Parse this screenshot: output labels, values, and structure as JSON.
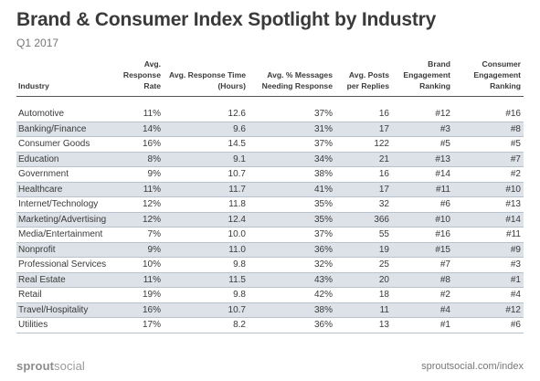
{
  "header": {
    "title": "Brand & Consumer Index Spotlight by Industry",
    "subtitle": "Q1 2017"
  },
  "chart_data": {
    "type": "table",
    "title": "Brand & Consumer Index Spotlight by Industry",
    "subtitle": "Q1 2017",
    "columns": [
      "Industry",
      "Avg. Response Rate",
      "Avg. Response Time (Hours)",
      "Avg. % Messages Needing Response",
      "Avg. Posts per Replies",
      "Brand Engagement Ranking",
      "Consumer Engagement Ranking"
    ],
    "rows": [
      [
        "Automotive",
        "11%",
        "12.6",
        "37%",
        "16",
        "#12",
        "#16"
      ],
      [
        "Banking/Finance",
        "14%",
        "9.6",
        "31%",
        "17",
        "#3",
        "#8"
      ],
      [
        "Consumer Goods",
        "16%",
        "14.5",
        "37%",
        "122",
        "#5",
        "#5"
      ],
      [
        "Education",
        "8%",
        "9.1",
        "34%",
        "21",
        "#13",
        "#7"
      ],
      [
        "Government",
        "9%",
        "10.7",
        "38%",
        "16",
        "#14",
        "#2"
      ],
      [
        "Healthcare",
        "11%",
        "11.7",
        "41%",
        "17",
        "#11",
        "#10"
      ],
      [
        "Internet/Technology",
        "12%",
        "11.8",
        "35%",
        "32",
        "#6",
        "#13"
      ],
      [
        "Marketing/Advertising",
        "12%",
        "12.4",
        "35%",
        "366",
        "#10",
        "#14"
      ],
      [
        "Media/Entertainment",
        "7%",
        "10.0",
        "37%",
        "55",
        "#16",
        "#11"
      ],
      [
        "Nonprofit",
        "9%",
        "11.0",
        "36%",
        "19",
        "#15",
        "#9"
      ],
      [
        "Professional Services",
        "10%",
        "9.8",
        "32%",
        "25",
        "#7",
        "#3"
      ],
      [
        "Real Estate",
        "11%",
        "11.5",
        "43%",
        "20",
        "#8",
        "#1"
      ],
      [
        "Retail",
        "19%",
        "9.8",
        "42%",
        "18",
        "#2",
        "#4"
      ],
      [
        "Travel/Hospitality",
        "16%",
        "10.7",
        "38%",
        "11",
        "#4",
        "#12"
      ],
      [
        "Utilities",
        "17%",
        "8.2",
        "36%",
        "13",
        "#1",
        "#6"
      ]
    ]
  },
  "footer": {
    "logo_part1": "sprout",
    "logo_part2": "social",
    "url": "sproutsocial.com/index"
  }
}
